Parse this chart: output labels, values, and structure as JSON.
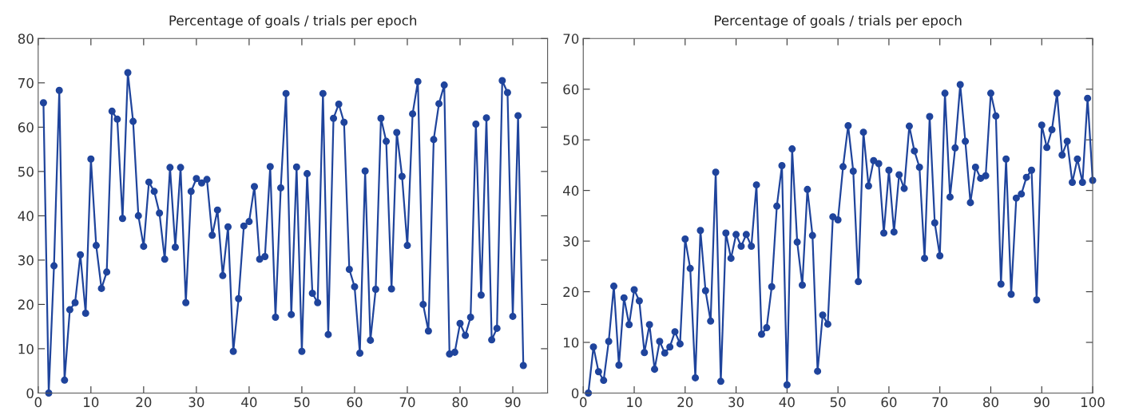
{
  "chart_data": [
    {
      "type": "line",
      "title": "Percentage of goals / trials per epoch",
      "marker": "circle",
      "line_style": "solid",
      "x": [
        1,
        2,
        3,
        4,
        5,
        6,
        7,
        8,
        9,
        10,
        11,
        12,
        13,
        14,
        15,
        16,
        17,
        18,
        19,
        20,
        21,
        22,
        23,
        24,
        25,
        26,
        27,
        28,
        29,
        30,
        31,
        32,
        33,
        34,
        35,
        36,
        37,
        38,
        39,
        40,
        41,
        42,
        43,
        44,
        45,
        46,
        47,
        48,
        49,
        50,
        51,
        52,
        53,
        54,
        55,
        56,
        57,
        58,
        59,
        60,
        61,
        62,
        63,
        64,
        65,
        66,
        67,
        68,
        69,
        70,
        71,
        72,
        73,
        74,
        75,
        76,
        77,
        78,
        79,
        80,
        81,
        82,
        83,
        84,
        85,
        86,
        87,
        88,
        89,
        90,
        91,
        92
      ],
      "series": [
        {
          "color": "#1f449c",
          "values": [
            65.5,
            0,
            28.7,
            68.3,
            2.9,
            18.8,
            20.4,
            31.2,
            18,
            52.8,
            33.3,
            23.6,
            27.3,
            63.6,
            61.8,
            39.4,
            72.3,
            61.3,
            40,
            33.1,
            47.6,
            45.5,
            40.6,
            30.2,
            50.9,
            32.9,
            50.9,
            20.4,
            45.5,
            48.4,
            47.4,
            48.2,
            35.6,
            41.3,
            26.5,
            37.5,
            9.4,
            21.3,
            37.7,
            38.7,
            46.6,
            30.2,
            30.8,
            51.1,
            17.1,
            46.3,
            67.6,
            17.7,
            51,
            9.4,
            49.5,
            22.5,
            20.4,
            67.6,
            13.2,
            62,
            65.2,
            61.1,
            27.9,
            24,
            9,
            50.1,
            11.9,
            23.4,
            62,
            56.8,
            23.5,
            58.8,
            48.9,
            33.3,
            63,
            70.3,
            20,
            14,
            57.2,
            65.3,
            69.5,
            8.8,
            9.2,
            15.7,
            13,
            17.1,
            60.7,
            22.1,
            62.1,
            12,
            14.6,
            70.5,
            67.8,
            17.3,
            62.6,
            6.2
          ]
        }
      ],
      "xlim": [
        0,
        96.6
      ],
      "xticks": [
        0,
        10,
        20,
        30,
        40,
        50,
        60,
        70,
        80,
        90
      ],
      "ylim": [
        0,
        80
      ],
      "yticks": [
        0,
        10,
        20,
        30,
        40,
        50,
        60,
        70,
        80
      ]
    },
    {
      "type": "line",
      "title": "Percentage of goals / trials per epoch",
      "marker": "circle",
      "line_style": "solid",
      "x": [
        1,
        2,
        3,
        4,
        5,
        6,
        7,
        8,
        9,
        10,
        11,
        12,
        13,
        14,
        15,
        16,
        17,
        18,
        19,
        20,
        21,
        22,
        23,
        24,
        25,
        26,
        27,
        28,
        29,
        30,
        31,
        32,
        33,
        34,
        35,
        36,
        37,
        38,
        39,
        40,
        41,
        42,
        43,
        44,
        45,
        46,
        47,
        48,
        49,
        50,
        51,
        52,
        53,
        54,
        55,
        56,
        57,
        58,
        59,
        60,
        61,
        62,
        63,
        64,
        65,
        66,
        67,
        68,
        69,
        70,
        71,
        72,
        73,
        74,
        75,
        76,
        77,
        78,
        79,
        80,
        81,
        82,
        83,
        84,
        85,
        86,
        87,
        88,
        89,
        90,
        91,
        92,
        93,
        94,
        95,
        96,
        97,
        98,
        99,
        100
      ],
      "series": [
        {
          "color": "#1f449c",
          "values": [
            0,
            9.1,
            4.2,
            2.5,
            10.2,
            21.1,
            5.5,
            18.8,
            13.5,
            20.4,
            18.2,
            8,
            13.5,
            4.7,
            10.2,
            7.9,
            9.1,
            12.1,
            9.7,
            30.4,
            24.6,
            3,
            32.1,
            20.2,
            14.2,
            43.6,
            2.3,
            31.6,
            26.6,
            31.3,
            29,
            31.3,
            29,
            41.1,
            11.6,
            12.9,
            21,
            36.9,
            44.9,
            1.6,
            48.2,
            29.8,
            21.3,
            40.2,
            31.1,
            4.3,
            15.4,
            13.6,
            34.8,
            34.2,
            44.7,
            52.8,
            43.8,
            22,
            51.5,
            40.9,
            45.9,
            45.3,
            31.6,
            44,
            31.8,
            43.1,
            40.4,
            52.7,
            47.8,
            44.6,
            26.6,
            54.6,
            33.6,
            27.1,
            59.2,
            38.7,
            48.4,
            60.9,
            49.7,
            37.6,
            44.6,
            42.4,
            42.9,
            59.2,
            54.7,
            21.5,
            46.2,
            19.5,
            38.5,
            39.3,
            42.6,
            44,
            18.4,
            52.9,
            48.5,
            52,
            59.2,
            47,
            49.7,
            41.6,
            46.2,
            41.6,
            58.2,
            42
          ]
        }
      ],
      "xlim": [
        0,
        100
      ],
      "xticks": [
        0,
        10,
        20,
        30,
        40,
        50,
        60,
        70,
        80,
        90,
        100
      ],
      "ylim": [
        0,
        70
      ],
      "yticks": [
        0,
        10,
        20,
        30,
        40,
        50,
        60,
        70
      ]
    }
  ]
}
